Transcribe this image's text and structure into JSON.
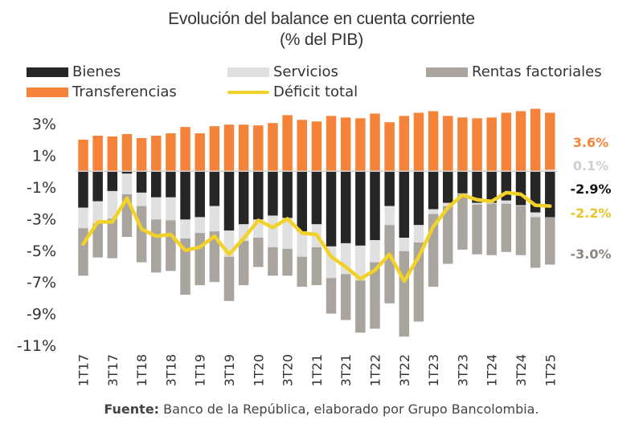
{
  "chart_data": {
    "type": "bar",
    "stacked": true,
    "title": "Evolución del balance en cuenta corriente",
    "subtitle": "(% del PIB)",
    "xlabel": "",
    "ylabel": "",
    "ylim": [
      -11,
      4
    ],
    "yticks": [
      3,
      1,
      -1,
      -3,
      -5,
      -7,
      -9,
      -11
    ],
    "ytick_labels": [
      "3%",
      "1%",
      "-1%",
      "-3%",
      "-5%",
      "-7%",
      "-9%",
      "-11%"
    ],
    "grid": false,
    "legend_position": "top",
    "categories": [
      "1T17",
      "2T17",
      "3T17",
      "4T17",
      "1T18",
      "2T18",
      "3T18",
      "4T18",
      "1T19",
      "2T19",
      "3T19",
      "4T19",
      "1T20",
      "2T20",
      "3T20",
      "4T20",
      "1T21",
      "2T21",
      "3T21",
      "4T21",
      "1T22",
      "2T22",
      "3T22",
      "4T22",
      "1T23",
      "2T23",
      "3T23",
      "4T23",
      "1T24",
      "2T24",
      "3T24",
      "4T24",
      "1T25"
    ],
    "xtick_labels": [
      "1T17",
      "",
      "3T17",
      "",
      "1T18",
      "",
      "3T18",
      "",
      "1T19",
      "",
      "3T19",
      "",
      "1T20",
      "",
      "3T20",
      "",
      "1T21",
      "",
      "3T21",
      "",
      "1T22",
      "",
      "3T22",
      "",
      "1T23",
      "",
      "3T23",
      "",
      "1T24",
      "",
      "3T24",
      "",
      "1T25"
    ],
    "series": [
      {
        "name": "Bienes",
        "kind": "bar",
        "color": "#262626",
        "values": [
          -2.3,
          -1.9,
          -1.25,
          -0.15,
          -1.35,
          -1.65,
          -1.65,
          -3.05,
          -2.9,
          -2.2,
          -3.75,
          -3.35,
          -3.05,
          -2.8,
          -2.95,
          -3.8,
          -3.35,
          -4.75,
          -4.55,
          -4.7,
          -4.35,
          -2.2,
          -4.2,
          -3.4,
          -2.4,
          -2.0,
          -1.4,
          -2.0,
          -2.0,
          -1.85,
          -2.15,
          -2.6,
          -2.9
        ]
      },
      {
        "name": "Servicios",
        "kind": "bar",
        "color": "#e0e0e0",
        "values": [
          -1.3,
          -1.4,
          -1.75,
          -1.3,
          -0.85,
          -1.4,
          -1.45,
          -1.2,
          -1.0,
          -1.6,
          -1.65,
          -1.05,
          -1.15,
          -2.0,
          -1.95,
          -1.6,
          -1.45,
          -2.0,
          -1.95,
          -2.2,
          -1.4,
          -1.2,
          -0.85,
          -1.1,
          -0.3,
          -0.2,
          -0.05,
          -0.1,
          -0.05,
          -0.2,
          -0.05,
          -0.3,
          0.1
        ]
      },
      {
        "name": "Rentas factoriales",
        "kind": "bar",
        "color": "#a9a49e",
        "values": [
          -3.0,
          -2.15,
          -2.5,
          -2.7,
          -3.55,
          -3.35,
          -3.2,
          -3.55,
          -3.3,
          -3.2,
          -2.8,
          -2.8,
          -1.85,
          -1.8,
          -1.7,
          -1.9,
          -2.4,
          -2.25,
          -2.9,
          -3.3,
          -4.2,
          -4.95,
          -5.4,
          -5.0,
          -4.6,
          -3.65,
          -3.5,
          -3.15,
          -3.25,
          -3.05,
          -3.1,
          -3.2,
          -3.0
        ]
      },
      {
        "name": "Transferencias",
        "kind": "bar",
        "color": "#f5843a",
        "values": [
          2.0,
          2.25,
          2.2,
          2.35,
          2.1,
          2.25,
          2.4,
          2.8,
          2.4,
          2.85,
          2.95,
          2.95,
          2.9,
          3.05,
          3.55,
          3.25,
          3.15,
          3.5,
          3.4,
          3.35,
          3.65,
          3.1,
          3.5,
          3.7,
          3.8,
          3.5,
          3.4,
          3.35,
          3.4,
          3.7,
          3.8,
          3.95,
          3.6
        ]
      },
      {
        "name": "Déficit total",
        "kind": "line",
        "color": "#f2d229",
        "values": [
          -4.6,
          -3.2,
          -3.2,
          -1.7,
          -3.65,
          -4.1,
          -4.0,
          -5.0,
          -4.8,
          -4.1,
          -5.25,
          -4.25,
          -3.1,
          -3.55,
          -3.0,
          -3.9,
          -4.0,
          -5.4,
          -6.05,
          -6.8,
          -6.25,
          -5.25,
          -6.95,
          -5.4,
          -3.5,
          -2.3,
          -1.5,
          -1.8,
          -1.9,
          -1.35,
          -1.45,
          -2.15,
          -2.2
        ]
      }
    ],
    "annotations": [
      {
        "text": "3.6%",
        "series": "Transferencias",
        "color": "#f5843a"
      },
      {
        "text": "0.1%",
        "series": "Servicios",
        "color": "#cfcfcf"
      },
      {
        "text": "-2.9%",
        "series": "Bienes",
        "color": "#111111"
      },
      {
        "text": "-2.2%",
        "series": "Déficit total",
        "color": "#e8c52a"
      },
      {
        "text": "-3.0%",
        "series": "Rentas factoriales",
        "color": "#8a8580"
      }
    ],
    "source_label": "Fuente:",
    "source_text": " Banco de la República, elaborado por Grupo Bancolombia."
  }
}
